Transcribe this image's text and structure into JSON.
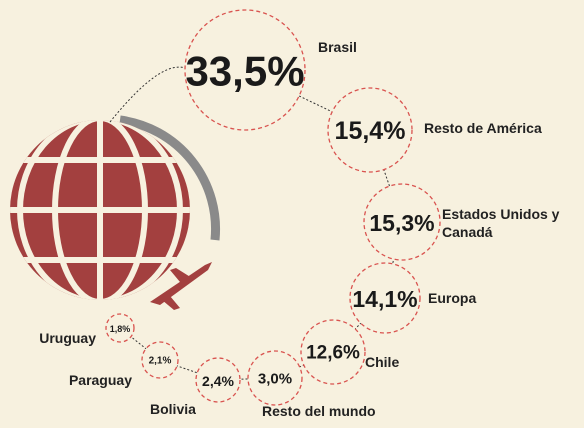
{
  "chart_data": {
    "type": "bubble",
    "categories": [
      "Brasil",
      "Resto de América",
      "Estados Unidos y Canadá",
      "Europa",
      "Chile",
      "Resto del mundo",
      "Bolivia",
      "Paraguay",
      "Uruguay"
    ],
    "values": [
      33.5,
      15.4,
      15.3,
      14.1,
      12.6,
      3.0,
      2.4,
      2.1,
      1.8
    ],
    "value_labels": [
      "33,5%",
      "15,4%",
      "15,3%",
      "14,1%",
      "12,6%",
      "3,0%",
      "2,4%",
      "2,1%",
      "1,8%"
    ],
    "color": "#d9534f"
  }
}
